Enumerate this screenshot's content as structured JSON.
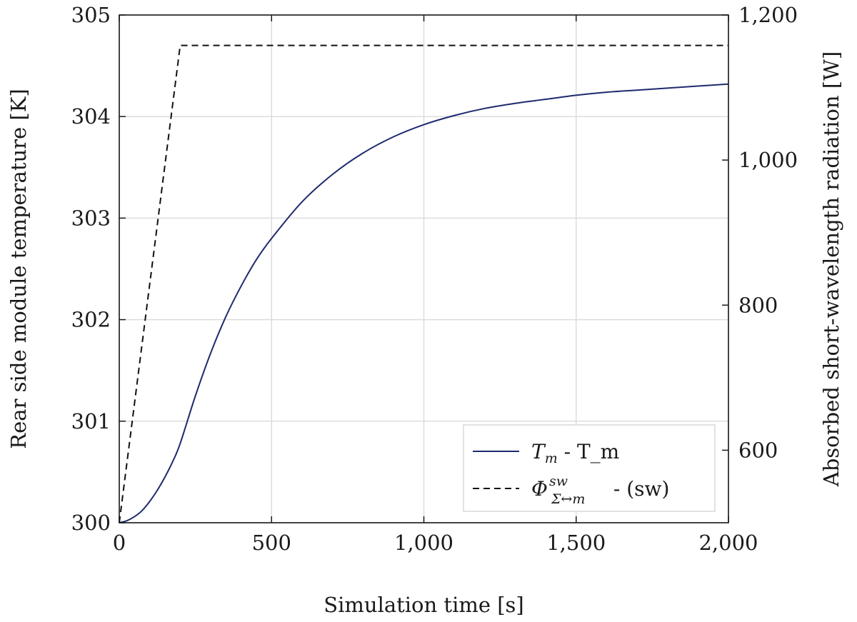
{
  "chart_data": {
    "type": "line",
    "title": "",
    "xlabel": "Simulation time [s]",
    "ylabel": "Rear side module temperature [K]",
    "y2label": "Absorbed short-wavelength radiation [W]",
    "xlim": [
      0,
      2000
    ],
    "ylim": [
      300,
      305
    ],
    "y2lim": [
      500,
      1200
    ],
    "xticks": [
      0,
      500,
      1000,
      1500,
      2000
    ],
    "xtick_labels": [
      "0",
      "500",
      "1,000",
      "1,500",
      "2,000"
    ],
    "yticks": [
      300,
      301,
      302,
      303,
      304,
      305
    ],
    "ytick_labels": [
      "300",
      "301",
      "302",
      "303",
      "304",
      "305"
    ],
    "y2ticks": [
      600,
      800,
      1000,
      1200
    ],
    "y2tick_labels": [
      "600",
      "800",
      "1,000",
      "1,200"
    ],
    "grid": true,
    "legend_position": "bottom-right",
    "series": [
      {
        "name": "T_m - T_m",
        "legend_math": "T",
        "legend_sub": "m",
        "legend_rest": " - T_m",
        "axis": "left",
        "style": "solid",
        "color": "#1f2a6e",
        "x": [
          0,
          25,
          50,
          75,
          100,
          125,
          150,
          175,
          200,
          250,
          300,
          350,
          400,
          450,
          500,
          600,
          700,
          800,
          900,
          1000,
          1100,
          1200,
          1300,
          1400,
          1500,
          1600,
          1700,
          1800,
          1900,
          2000
        ],
        "y": [
          300.0,
          300.02,
          300.06,
          300.12,
          300.21,
          300.32,
          300.45,
          300.6,
          300.78,
          301.25,
          301.67,
          302.03,
          302.33,
          302.59,
          302.8,
          303.16,
          303.43,
          303.64,
          303.8,
          303.92,
          304.01,
          304.08,
          304.13,
          304.17,
          304.21,
          304.24,
          304.26,
          304.28,
          304.3,
          304.32
        ]
      },
      {
        "name": "Φ sw Σ↔m - (sw)",
        "legend_math": "Φ",
        "legend_sub": "Σ↔m",
        "legend_sup": "sw",
        "legend_rest": " - (sw)",
        "axis": "right",
        "style": "dashed",
        "color": "#111111",
        "x": [
          0,
          200,
          2000
        ],
        "y": [
          500,
          1158,
          1158
        ]
      }
    ]
  }
}
